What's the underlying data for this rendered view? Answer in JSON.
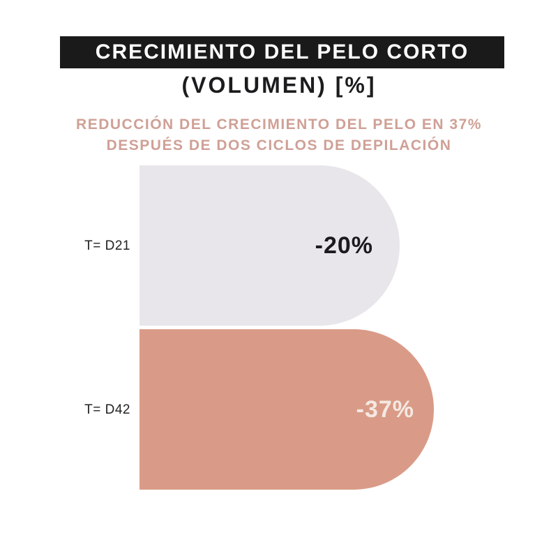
{
  "header": {
    "banner_title": "CRECIMIENTO DEL PELO CORTO",
    "units_line": "(VOLUMEN) [%]"
  },
  "description": {
    "line1": "REDUCCIÓN DEL CRECIMIENTO DEL PELO EN 37%",
    "line2": "DESPUÉS DE DOS CICLOS DE DEPILACIÓN"
  },
  "colors": {
    "banner_background": "#1a1a1a",
    "banner_text": "#ffffff",
    "units_text": "#1c1c1e",
    "description_text": "#cfa096",
    "bar_d21_fill": "#e8e6ea",
    "bar_d42_fill": "#d99b87",
    "bar_d21_value_text": "#1b1b1d",
    "bar_d42_value_text": "#f4e9e2",
    "page_background": "#ffffff"
  },
  "chart_data": {
    "type": "bar",
    "orientation": "horizontal",
    "title": "CRECIMIENTO DEL PELO CORTO (VOLUMEN) [%]",
    "subtitle": "REDUCCIÓN DEL CRECIMIENTO DEL PELO EN 37% DESPUÉS DE DOS CICLOS DE DEPILACIÓN",
    "categories": [
      "T= D21",
      "T= D42"
    ],
    "values": [
      -20,
      -37
    ],
    "value_labels": [
      "-20%",
      "-37%"
    ],
    "unit": "%",
    "series_name": "Reducción del crecimiento del pelo (volumen)",
    "bar_colors": [
      "#e8e6ea",
      "#d99b87"
    ],
    "bar_shape": "rounded-right-cap",
    "legend": false,
    "grid": false,
    "axes_visible": false,
    "value_label_position": "inside-right"
  }
}
